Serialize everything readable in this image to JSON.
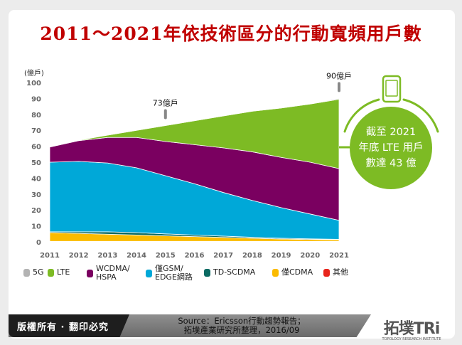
{
  "title": "2011～2021年依技術區分的行動寬頻用戶數",
  "chart_data": {
    "type": "area",
    "stacked": true,
    "ylabel": "(億戶)",
    "ylim": [
      0,
      100
    ],
    "yticks": [
      0,
      10,
      20,
      30,
      40,
      50,
      60,
      70,
      80,
      90,
      100
    ],
    "categories": [
      "2011",
      "2012",
      "2013",
      "2014",
      "2015",
      "2016",
      "2017",
      "2018",
      "2019",
      "2020",
      "2021"
    ],
    "series": [
      {
        "name": "其他",
        "color": "#e8251c",
        "values": [
          0.3,
          0.3,
          0.3,
          0.3,
          0.3,
          0.3,
          0.3,
          0.3,
          0.3,
          0.3,
          0.3
        ]
      },
      {
        "name": "僅CDMA",
        "color": "#fbbb00",
        "values": [
          5.5,
          5,
          4.5,
          4,
          3.5,
          3,
          2.5,
          2,
          1.5,
          1.2,
          1
        ]
      },
      {
        "name": "TD-SCDMA",
        "color": "#0b6b63",
        "values": [
          0.5,
          1,
          1.5,
          1.5,
          1.2,
          1,
          0.8,
          0.6,
          0.5,
          0.4,
          0.3
        ]
      },
      {
        "name": "僅GSM/\nEDGE網路",
        "color": "#00a8d8",
        "values": [
          43.7,
          44.2,
          43.2,
          40.7,
          36.5,
          32.2,
          27.4,
          23.1,
          19.2,
          15.6,
          11.9
        ]
      },
      {
        "name": "WCDMA/\nHSPA",
        "color": "#7a0060",
        "values": [
          9.5,
          13,
          16,
          19,
          21.5,
          24.5,
          28,
          30.5,
          31.5,
          32.5,
          32.5
        ]
      },
      {
        "name": "LTE",
        "color": "#7dbb24",
        "values": [
          0,
          0.3,
          1.5,
          4.5,
          10,
          15,
          20,
          25.5,
          31,
          36.5,
          43.5
        ]
      },
      {
        "name": "5G",
        "color": "#b3b3b3",
        "values": [
          0,
          0,
          0,
          0,
          0,
          0,
          0,
          0,
          0,
          0.2,
          0.5
        ]
      }
    ],
    "legend_order": [
      "5G",
      "LTE",
      "WCDMA/\nHSPA",
      "僅GSM/\nEDGE網路",
      "TD-SCDMA",
      "僅CDMA",
      "其他"
    ],
    "legend_placement": "bottom",
    "annotations": [
      {
        "x": "2015",
        "y": 73,
        "text": "73億戶"
      },
      {
        "x": "2021",
        "y": 90,
        "text": "90億戶"
      }
    ],
    "grid": false
  },
  "callout": {
    "lines": [
      "截至 2021",
      "年底 LTE 用戶",
      "數達 43 億"
    ],
    "color": "#7dbb24"
  },
  "footer": {
    "copyright": "版權所有 · 翻印必究",
    "source_line1": "Source：Ericsson行動趨勢報告；",
    "source_line2": "拓墣產業研究所整理，2016/09",
    "logo_text": "拓墣TRi",
    "logo_sub": "TOPOLOGY RESEARCH INSTITUTE"
  }
}
